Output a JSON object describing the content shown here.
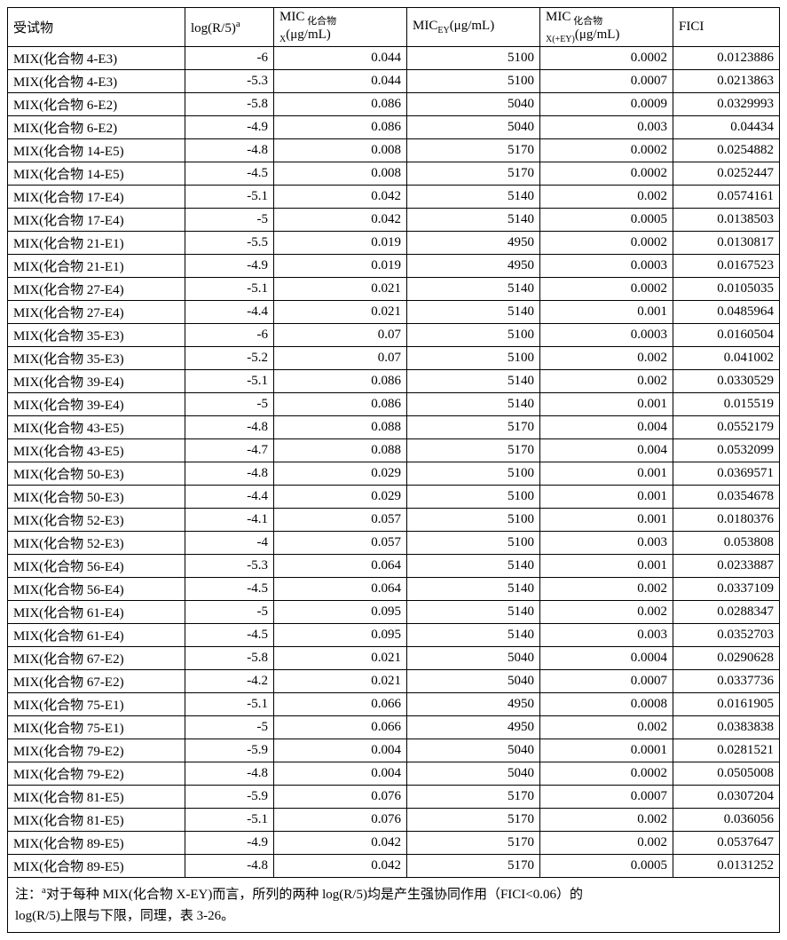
{
  "headers": {
    "subject": "受试物",
    "log": "log(R/5)",
    "log_sup": "a",
    "micx_pre": "MIC",
    "micx_sub1": " 化合物",
    "micx_sub2": "X",
    "micx_unit": "(μg/mL)",
    "micey_pre": "MIC",
    "micey_sub": "EY",
    "micey_unit": "(μg/mL)",
    "micxey_pre": "MIC",
    "micxey_sub1": " 化合物",
    "micxey_sub2": "X(+EY)",
    "micxey_unit": "(μg/mL)",
    "fici": "FICI"
  },
  "rows": [
    {
      "subject": "MIX(化合物 4-E3)",
      "log": "-6",
      "micx": "0.044",
      "micey": "5100",
      "micxey": "0.0002",
      "fici": "0.0123886"
    },
    {
      "subject": "MIX(化合物 4-E3)",
      "log": "-5.3",
      "micx": "0.044",
      "micey": "5100",
      "micxey": "0.0007",
      "fici": "0.0213863"
    },
    {
      "subject": "MIX(化合物 6-E2)",
      "log": "-5.8",
      "micx": "0.086",
      "micey": "5040",
      "micxey": "0.0009",
      "fici": "0.0329993"
    },
    {
      "subject": "MIX(化合物 6-E2)",
      "log": "-4.9",
      "micx": "0.086",
      "micey": "5040",
      "micxey": "0.003",
      "fici": "0.04434"
    },
    {
      "subject": "MIX(化合物 14-E5)",
      "log": "-4.8",
      "micx": "0.008",
      "micey": "5170",
      "micxey": "0.0002",
      "fici": "0.0254882"
    },
    {
      "subject": "MIX(化合物 14-E5)",
      "log": "-4.5",
      "micx": "0.008",
      "micey": "5170",
      "micxey": "0.0002",
      "fici": "0.0252447"
    },
    {
      "subject": "MIX(化合物 17-E4)",
      "log": "-5.1",
      "micx": "0.042",
      "micey": "5140",
      "micxey": "0.002",
      "fici": "0.0574161"
    },
    {
      "subject": "MIX(化合物 17-E4)",
      "log": "-5",
      "micx": "0.042",
      "micey": "5140",
      "micxey": "0.0005",
      "fici": "0.0138503"
    },
    {
      "subject": "MIX(化合物 21-E1)",
      "log": "-5.5",
      "micx": "0.019",
      "micey": "4950",
      "micxey": "0.0002",
      "fici": "0.0130817"
    },
    {
      "subject": "MIX(化合物 21-E1)",
      "log": "-4.9",
      "micx": "0.019",
      "micey": "4950",
      "micxey": "0.0003",
      "fici": "0.0167523"
    },
    {
      "subject": "MIX(化合物 27-E4)",
      "log": "-5.1",
      "micx": "0.021",
      "micey": "5140",
      "micxey": "0.0002",
      "fici": "0.0105035"
    },
    {
      "subject": "MIX(化合物 27-E4)",
      "log": "-4.4",
      "micx": "0.021",
      "micey": "5140",
      "micxey": "0.001",
      "fici": "0.0485964"
    },
    {
      "subject": "MIX(化合物 35-E3)",
      "log": "-6",
      "micx": "0.07",
      "micey": "5100",
      "micxey": "0.0003",
      "fici": "0.0160504"
    },
    {
      "subject": "MIX(化合物 35-E3)",
      "log": "-5.2",
      "micx": "0.07",
      "micey": "5100",
      "micxey": "0.002",
      "fici": "0.041002"
    },
    {
      "subject": "MIX(化合物 39-E4)",
      "log": "-5.1",
      "micx": "0.086",
      "micey": "5140",
      "micxey": "0.002",
      "fici": "0.0330529"
    },
    {
      "subject": "MIX(化合物 39-E4)",
      "log": "-5",
      "micx": "0.086",
      "micey": "5140",
      "micxey": "0.001",
      "fici": "0.015519"
    },
    {
      "subject": "MIX(化合物 43-E5)",
      "log": "-4.8",
      "micx": "0.088",
      "micey": "5170",
      "micxey": "0.004",
      "fici": "0.0552179"
    },
    {
      "subject": "MIX(化合物 43-E5)",
      "log": "-4.7",
      "micx": "0.088",
      "micey": "5170",
      "micxey": "0.004",
      "fici": "0.0532099"
    },
    {
      "subject": "MIX(化合物 50-E3)",
      "log": "-4.8",
      "micx": "0.029",
      "micey": "5100",
      "micxey": "0.001",
      "fici": "0.0369571"
    },
    {
      "subject": "MIX(化合物 50-E3)",
      "log": "-4.4",
      "micx": "0.029",
      "micey": "5100",
      "micxey": "0.001",
      "fici": "0.0354678"
    },
    {
      "subject": "MIX(化合物 52-E3)",
      "log": "-4.1",
      "micx": "0.057",
      "micey": "5100",
      "micxey": "0.001",
      "fici": "0.0180376"
    },
    {
      "subject": "MIX(化合物 52-E3)",
      "log": "-4",
      "micx": "0.057",
      "micey": "5100",
      "micxey": "0.003",
      "fici": "0.053808"
    },
    {
      "subject": "MIX(化合物 56-E4)",
      "log": "-5.3",
      "micx": "0.064",
      "micey": "5140",
      "micxey": "0.001",
      "fici": "0.0233887"
    },
    {
      "subject": "MIX(化合物 56-E4)",
      "log": "-4.5",
      "micx": "0.064",
      "micey": "5140",
      "micxey": "0.002",
      "fici": "0.0337109"
    },
    {
      "subject": "MIX(化合物 61-E4)",
      "log": "-5",
      "micx": "0.095",
      "micey": "5140",
      "micxey": "0.002",
      "fici": "0.0288347"
    },
    {
      "subject": "MIX(化合物 61-E4)",
      "log": "-4.5",
      "micx": "0.095",
      "micey": "5140",
      "micxey": "0.003",
      "fici": "0.0352703"
    },
    {
      "subject": "MIX(化合物 67-E2)",
      "log": "-5.8",
      "micx": "0.021",
      "micey": "5040",
      "micxey": "0.0004",
      "fici": "0.0290628"
    },
    {
      "subject": "MIX(化合物 67-E2)",
      "log": "-4.2",
      "micx": "0.021",
      "micey": "5040",
      "micxey": "0.0007",
      "fici": "0.0337736"
    },
    {
      "subject": "MIX(化合物 75-E1)",
      "log": "-5.1",
      "micx": "0.066",
      "micey": "4950",
      "micxey": "0.0008",
      "fici": "0.0161905"
    },
    {
      "subject": "MIX(化合物 75-E1)",
      "log": "-5",
      "micx": "0.066",
      "micey": "4950",
      "micxey": "0.002",
      "fici": "0.0383838"
    },
    {
      "subject": "MIX(化合物 79-E2)",
      "log": "-5.9",
      "micx": "0.004",
      "micey": "5040",
      "micxey": "0.0001",
      "fici": "0.0281521"
    },
    {
      "subject": "MIX(化合物 79-E2)",
      "log": "-4.8",
      "micx": "0.004",
      "micey": "5040",
      "micxey": "0.0002",
      "fici": "0.0505008"
    },
    {
      "subject": "MIX(化合物 81-E5)",
      "log": "-5.9",
      "micx": "0.076",
      "micey": "5170",
      "micxey": "0.0007",
      "fici": "0.0307204"
    },
    {
      "subject": "MIX(化合物 81-E5)",
      "log": "-5.1",
      "micx": "0.076",
      "micey": "5170",
      "micxey": "0.002",
      "fici": "0.036056"
    },
    {
      "subject": "MIX(化合物 89-E5)",
      "log": "-4.9",
      "micx": "0.042",
      "micey": "5170",
      "micxey": "0.002",
      "fici": "0.0537647"
    },
    {
      "subject": "MIX(化合物 89-E5)",
      "log": "-4.8",
      "micx": "0.042",
      "micey": "5170",
      "micxey": "0.0005",
      "fici": "0.0131252"
    }
  ],
  "footnote": {
    "prefix": "注：",
    "sup": "a",
    "body1": "对于每种 MIX(化合物 X-EY)而言，所列的两种 log(R/5)均是产生强协同作用（FICI<0.06）的",
    "body2": "log(R/5)上限与下限，同理，表 3-26。"
  }
}
